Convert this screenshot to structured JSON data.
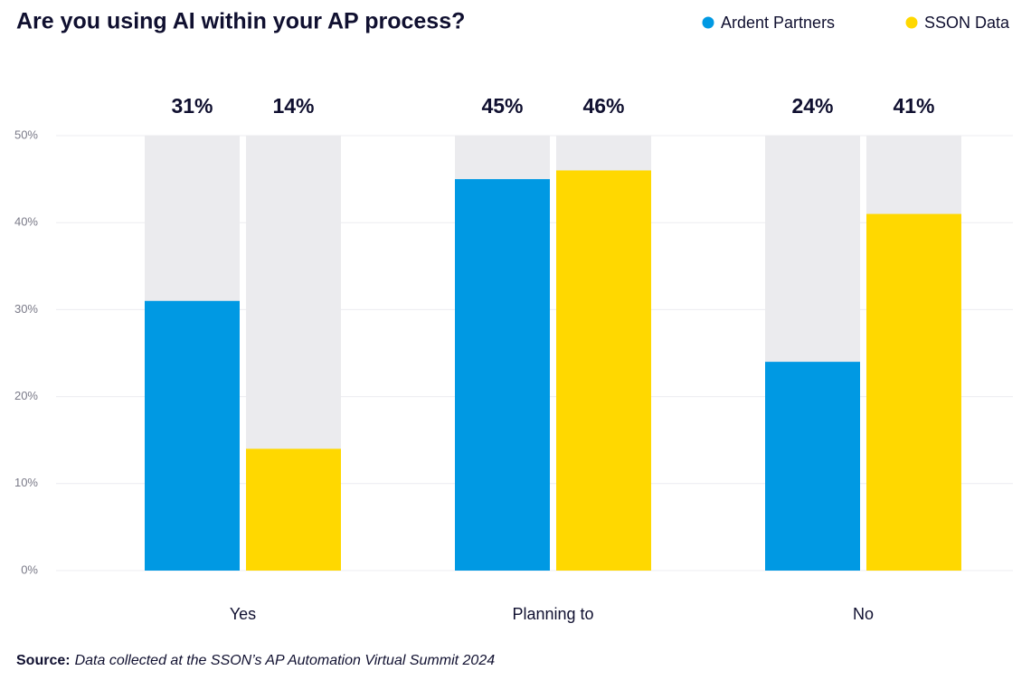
{
  "chart_data": {
    "type": "bar",
    "title": "Are you using AI within your AP process?",
    "categories": [
      "Yes",
      "Planning to",
      "No"
    ],
    "series": [
      {
        "name": "Ardent Partners",
        "color": "#0099e3",
        "values": [
          31,
          45,
          24
        ],
        "value_labels": [
          "31%",
          "45%",
          "24%"
        ]
      },
      {
        "name": "SSON Data",
        "color": "#ffd800",
        "values": [
          14,
          46,
          41
        ],
        "value_labels": [
          "14%",
          "46%",
          "41%"
        ]
      }
    ],
    "ylim": [
      0,
      50
    ],
    "yticks": [
      {
        "value": 0,
        "label": "0%"
      },
      {
        "value": 10,
        "label": "10%"
      },
      {
        "value": 20,
        "label": "20%"
      },
      {
        "value": 30,
        "label": "30%"
      },
      {
        "value": 40,
        "label": "40%"
      },
      {
        "value": 50,
        "label": "50%"
      }
    ],
    "grid": true,
    "legend": "top-right",
    "source_label": "Source:",
    "source_text": "Data collected at the SSON’s AP Automation Virtual Summit 2024"
  }
}
